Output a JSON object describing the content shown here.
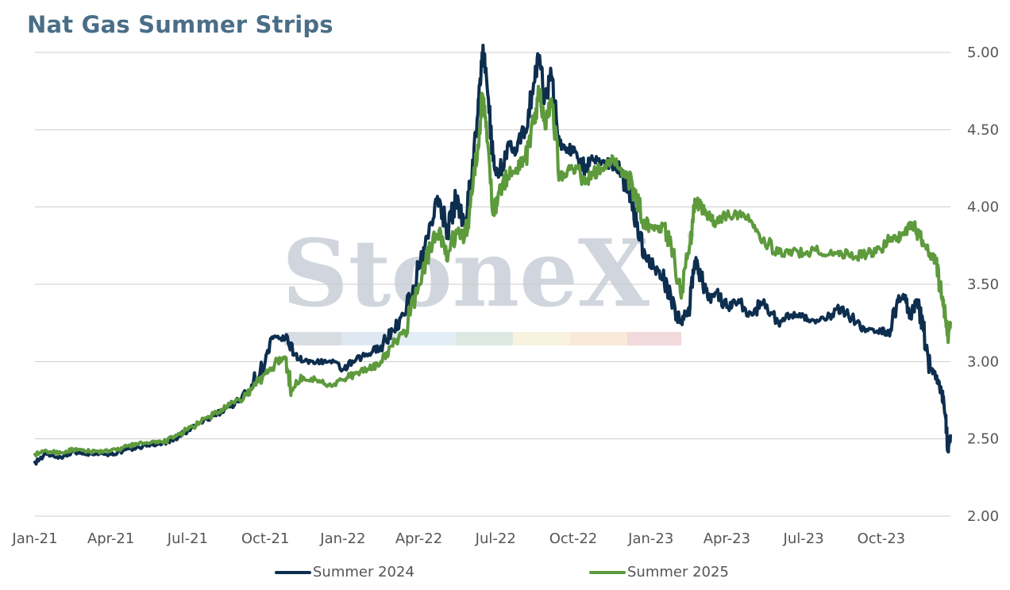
{
  "colors": {
    "summer_2024": "#0d2e4e",
    "summer_2025": "#5d9a3c",
    "grid": "#cccccc",
    "title": "#4a6e87"
  },
  "chart_data": {
    "type": "line",
    "title": "Nat Gas Summer Strips",
    "xlabel": "",
    "ylabel": "",
    "x_range": [
      "2021-01-01",
      "2023-12-22"
    ],
    "ylim": [
      2.0,
      5.0
    ],
    "y_ticks": [
      "2.00",
      "2.50",
      "3.00",
      "3.50",
      "4.00",
      "4.50",
      "5.00"
    ],
    "x_ticks": [
      "Jan-21",
      "Apr-21",
      "Jul-21",
      "Oct-21",
      "Jan-22",
      "Apr-22",
      "Jul-22",
      "Oct-22",
      "Jan-23",
      "Apr-23",
      "Jul-23",
      "Oct-23"
    ],
    "y_axis_side": "right",
    "grid": "horizontal",
    "legend_position": "bottom",
    "series": [
      {
        "name": "Summer 2024",
        "points": [
          [
            "2021-01-01",
            2.35
          ],
          [
            "2021-01-15",
            2.4
          ],
          [
            "2021-02-01",
            2.38
          ],
          [
            "2021-02-15",
            2.42
          ],
          [
            "2021-03-01",
            2.4
          ],
          [
            "2021-03-15",
            2.41
          ],
          [
            "2021-04-01",
            2.4
          ],
          [
            "2021-04-15",
            2.42
          ],
          [
            "2021-05-01",
            2.44
          ],
          [
            "2021-05-15",
            2.46
          ],
          [
            "2021-06-01",
            2.47
          ],
          [
            "2021-06-15",
            2.5
          ],
          [
            "2021-07-01",
            2.55
          ],
          [
            "2021-07-15",
            2.6
          ],
          [
            "2021-08-01",
            2.65
          ],
          [
            "2021-08-15",
            2.7
          ],
          [
            "2021-09-01",
            2.75
          ],
          [
            "2021-09-15",
            2.85
          ],
          [
            "2021-10-01",
            3.0
          ],
          [
            "2021-10-10",
            3.15
          ],
          [
            "2021-10-25",
            3.15
          ],
          [
            "2021-11-05",
            3.05
          ],
          [
            "2021-11-15",
            3.0
          ],
          [
            "2021-12-01",
            3.0
          ],
          [
            "2021-12-15",
            3.0
          ],
          [
            "2022-01-01",
            2.95
          ],
          [
            "2022-01-15",
            3.0
          ],
          [
            "2022-02-01",
            3.05
          ],
          [
            "2022-02-15",
            3.1
          ],
          [
            "2022-03-01",
            3.2
          ],
          [
            "2022-03-15",
            3.3
          ],
          [
            "2022-04-01",
            3.6
          ],
          [
            "2022-04-15",
            3.9
          ],
          [
            "2022-04-25",
            4.05
          ],
          [
            "2022-05-05",
            3.85
          ],
          [
            "2022-05-15",
            4.05
          ],
          [
            "2022-05-25",
            3.9
          ],
          [
            "2022-06-01",
            4.15
          ],
          [
            "2022-06-10",
            4.6
          ],
          [
            "2022-06-15",
            5.0
          ],
          [
            "2022-06-20",
            4.85
          ],
          [
            "2022-06-28",
            4.3
          ],
          [
            "2022-07-05",
            4.2
          ],
          [
            "2022-07-15",
            4.4
          ],
          [
            "2022-07-25",
            4.35
          ],
          [
            "2022-08-05",
            4.5
          ],
          [
            "2022-08-15",
            4.8
          ],
          [
            "2022-08-22",
            4.98
          ],
          [
            "2022-08-28",
            4.7
          ],
          [
            "2022-09-05",
            4.85
          ],
          [
            "2022-09-15",
            4.4
          ],
          [
            "2022-09-25",
            4.38
          ],
          [
            "2022-10-05",
            4.35
          ],
          [
            "2022-10-15",
            4.25
          ],
          [
            "2022-10-25",
            4.3
          ],
          [
            "2022-11-05",
            4.3
          ],
          [
            "2022-11-15",
            4.28
          ],
          [
            "2022-11-25",
            4.25
          ],
          [
            "2022-12-05",
            4.1
          ],
          [
            "2022-12-15",
            3.9
          ],
          [
            "2022-12-25",
            3.7
          ],
          [
            "2023-01-05",
            3.6
          ],
          [
            "2023-01-15",
            3.55
          ],
          [
            "2023-01-25",
            3.4
          ],
          [
            "2023-02-05",
            3.25
          ],
          [
            "2023-02-15",
            3.35
          ],
          [
            "2023-02-22",
            3.65
          ],
          [
            "2023-03-01",
            3.55
          ],
          [
            "2023-03-10",
            3.4
          ],
          [
            "2023-03-20",
            3.45
          ],
          [
            "2023-04-01",
            3.35
          ],
          [
            "2023-04-15",
            3.4
          ],
          [
            "2023-05-01",
            3.3
          ],
          [
            "2023-05-15",
            3.4
          ],
          [
            "2023-06-01",
            3.25
          ],
          [
            "2023-06-15",
            3.3
          ],
          [
            "2023-07-01",
            3.3
          ],
          [
            "2023-07-15",
            3.25
          ],
          [
            "2023-08-01",
            3.3
          ],
          [
            "2023-08-15",
            3.35
          ],
          [
            "2023-09-01",
            3.25
          ],
          [
            "2023-09-15",
            3.2
          ],
          [
            "2023-10-01",
            3.2
          ],
          [
            "2023-10-10",
            3.18
          ],
          [
            "2023-10-20",
            3.4
          ],
          [
            "2023-10-28",
            3.42
          ],
          [
            "2023-11-05",
            3.3
          ],
          [
            "2023-11-12",
            3.4
          ],
          [
            "2023-11-20",
            3.2
          ],
          [
            "2023-11-28",
            2.95
          ],
          [
            "2023-12-05",
            2.9
          ],
          [
            "2023-12-12",
            2.8
          ],
          [
            "2023-12-16",
            2.65
          ],
          [
            "2023-12-19",
            2.42
          ],
          [
            "2023-12-22",
            2.52
          ]
        ]
      },
      {
        "name": "Summer 2025",
        "points": [
          [
            "2021-01-01",
            2.4
          ],
          [
            "2021-01-15",
            2.42
          ],
          [
            "2021-02-01",
            2.41
          ],
          [
            "2021-02-15",
            2.43
          ],
          [
            "2021-03-01",
            2.42
          ],
          [
            "2021-03-15",
            2.42
          ],
          [
            "2021-04-01",
            2.42
          ],
          [
            "2021-04-15",
            2.44
          ],
          [
            "2021-05-01",
            2.47
          ],
          [
            "2021-05-15",
            2.47
          ],
          [
            "2021-06-01",
            2.48
          ],
          [
            "2021-06-15",
            2.51
          ],
          [
            "2021-07-01",
            2.56
          ],
          [
            "2021-07-15",
            2.6
          ],
          [
            "2021-08-01",
            2.66
          ],
          [
            "2021-08-15",
            2.7
          ],
          [
            "2021-09-01",
            2.75
          ],
          [
            "2021-09-15",
            2.82
          ],
          [
            "2021-10-01",
            2.92
          ],
          [
            "2021-10-15",
            3.0
          ],
          [
            "2021-10-25",
            3.02
          ],
          [
            "2021-11-01",
            2.82
          ],
          [
            "2021-11-15",
            2.9
          ],
          [
            "2021-12-01",
            2.88
          ],
          [
            "2021-12-15",
            2.85
          ],
          [
            "2022-01-01",
            2.88
          ],
          [
            "2022-01-15",
            2.92
          ],
          [
            "2022-02-01",
            2.95
          ],
          [
            "2022-02-15",
            3.0
          ],
          [
            "2022-03-01",
            3.1
          ],
          [
            "2022-03-15",
            3.2
          ],
          [
            "2022-04-01",
            3.5
          ],
          [
            "2022-04-15",
            3.75
          ],
          [
            "2022-04-25",
            3.85
          ],
          [
            "2022-05-05",
            3.65
          ],
          [
            "2022-05-15",
            3.85
          ],
          [
            "2022-05-25",
            3.8
          ],
          [
            "2022-06-01",
            4.0
          ],
          [
            "2022-06-10",
            4.4
          ],
          [
            "2022-06-15",
            4.7
          ],
          [
            "2022-06-20",
            4.55
          ],
          [
            "2022-06-28",
            3.95
          ],
          [
            "2022-07-05",
            4.1
          ],
          [
            "2022-07-15",
            4.2
          ],
          [
            "2022-07-25",
            4.25
          ],
          [
            "2022-08-05",
            4.3
          ],
          [
            "2022-08-15",
            4.55
          ],
          [
            "2022-08-22",
            4.75
          ],
          [
            "2022-08-28",
            4.55
          ],
          [
            "2022-09-05",
            4.7
          ],
          [
            "2022-09-15",
            4.2
          ],
          [
            "2022-09-25",
            4.25
          ],
          [
            "2022-10-05",
            4.25
          ],
          [
            "2022-10-15",
            4.15
          ],
          [
            "2022-10-25",
            4.22
          ],
          [
            "2022-11-05",
            4.25
          ],
          [
            "2022-11-15",
            4.3
          ],
          [
            "2022-11-25",
            4.25
          ],
          [
            "2022-12-05",
            4.2
          ],
          [
            "2022-12-15",
            4.05
          ],
          [
            "2022-12-25",
            3.9
          ],
          [
            "2023-01-05",
            3.85
          ],
          [
            "2023-01-15",
            3.88
          ],
          [
            "2023-01-25",
            3.75
          ],
          [
            "2023-02-05",
            3.45
          ],
          [
            "2023-02-15",
            3.7
          ],
          [
            "2023-02-22",
            4.05
          ],
          [
            "2023-03-01",
            4.0
          ],
          [
            "2023-03-10",
            3.95
          ],
          [
            "2023-03-20",
            3.9
          ],
          [
            "2023-04-01",
            3.95
          ],
          [
            "2023-04-15",
            3.95
          ],
          [
            "2023-05-01",
            3.9
          ],
          [
            "2023-05-15",
            3.8
          ],
          [
            "2023-06-01",
            3.7
          ],
          [
            "2023-06-15",
            3.72
          ],
          [
            "2023-07-01",
            3.7
          ],
          [
            "2023-07-15",
            3.72
          ],
          [
            "2023-08-01",
            3.7
          ],
          [
            "2023-08-15",
            3.7
          ],
          [
            "2023-09-01",
            3.68
          ],
          [
            "2023-09-15",
            3.7
          ],
          [
            "2023-10-01",
            3.72
          ],
          [
            "2023-10-10",
            3.8
          ],
          [
            "2023-10-20",
            3.8
          ],
          [
            "2023-10-28",
            3.82
          ],
          [
            "2023-11-05",
            3.9
          ],
          [
            "2023-11-12",
            3.85
          ],
          [
            "2023-11-20",
            3.75
          ],
          [
            "2023-11-28",
            3.7
          ],
          [
            "2023-12-05",
            3.65
          ],
          [
            "2023-12-12",
            3.4
          ],
          [
            "2023-12-16",
            3.3
          ],
          [
            "2023-12-19",
            3.15
          ],
          [
            "2023-12-22",
            3.25
          ]
        ]
      }
    ],
    "watermark": {
      "text": "StoneX",
      "mark": "™",
      "color": "#d1d6de"
    }
  }
}
